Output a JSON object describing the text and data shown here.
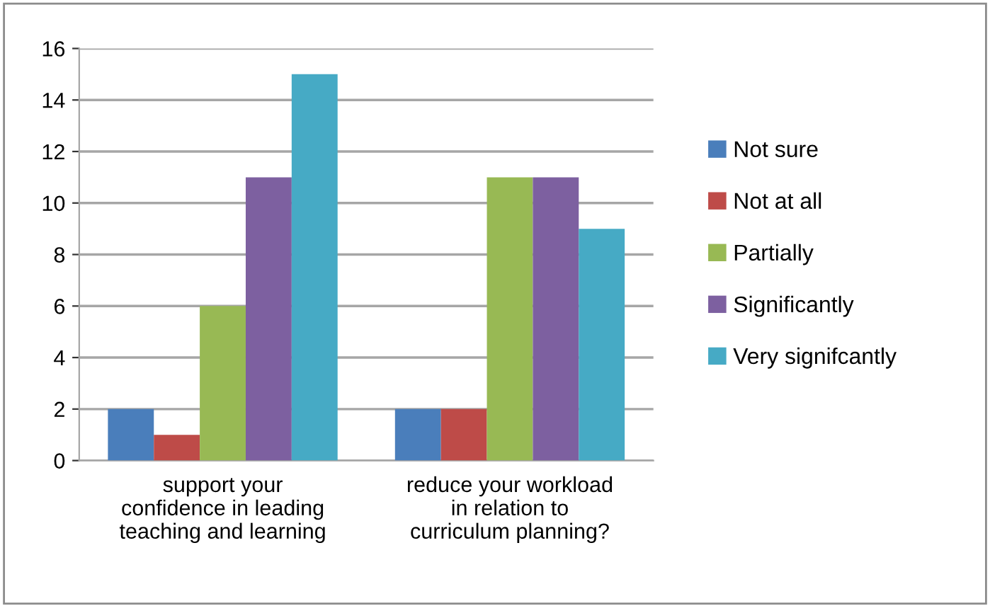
{
  "chart_data": {
    "type": "bar",
    "categories": [
      "support your\nconfidence in leading\nteaching and learning",
      "reduce your workload\nin relation to\ncurriculum planning?"
    ],
    "series": [
      {
        "name": "Not sure",
        "color": "#4a7ebb",
        "values": [
          2,
          2
        ]
      },
      {
        "name": "Not at all",
        "color": "#be4b48",
        "values": [
          1,
          2
        ]
      },
      {
        "name": "Partially",
        "color": "#98b954",
        "values": [
          6,
          11
        ]
      },
      {
        "name": "Significantly",
        "color": "#7d60a0",
        "values": [
          11,
          11
        ]
      },
      {
        "name": "Very signifcantly",
        "color": "#46aac5",
        "values": [
          15,
          9
        ]
      }
    ],
    "ylim": [
      0,
      16
    ],
    "yticks": [
      0,
      2,
      4,
      6,
      8,
      10,
      12,
      14,
      16
    ],
    "grid": "y",
    "legend": "right"
  }
}
